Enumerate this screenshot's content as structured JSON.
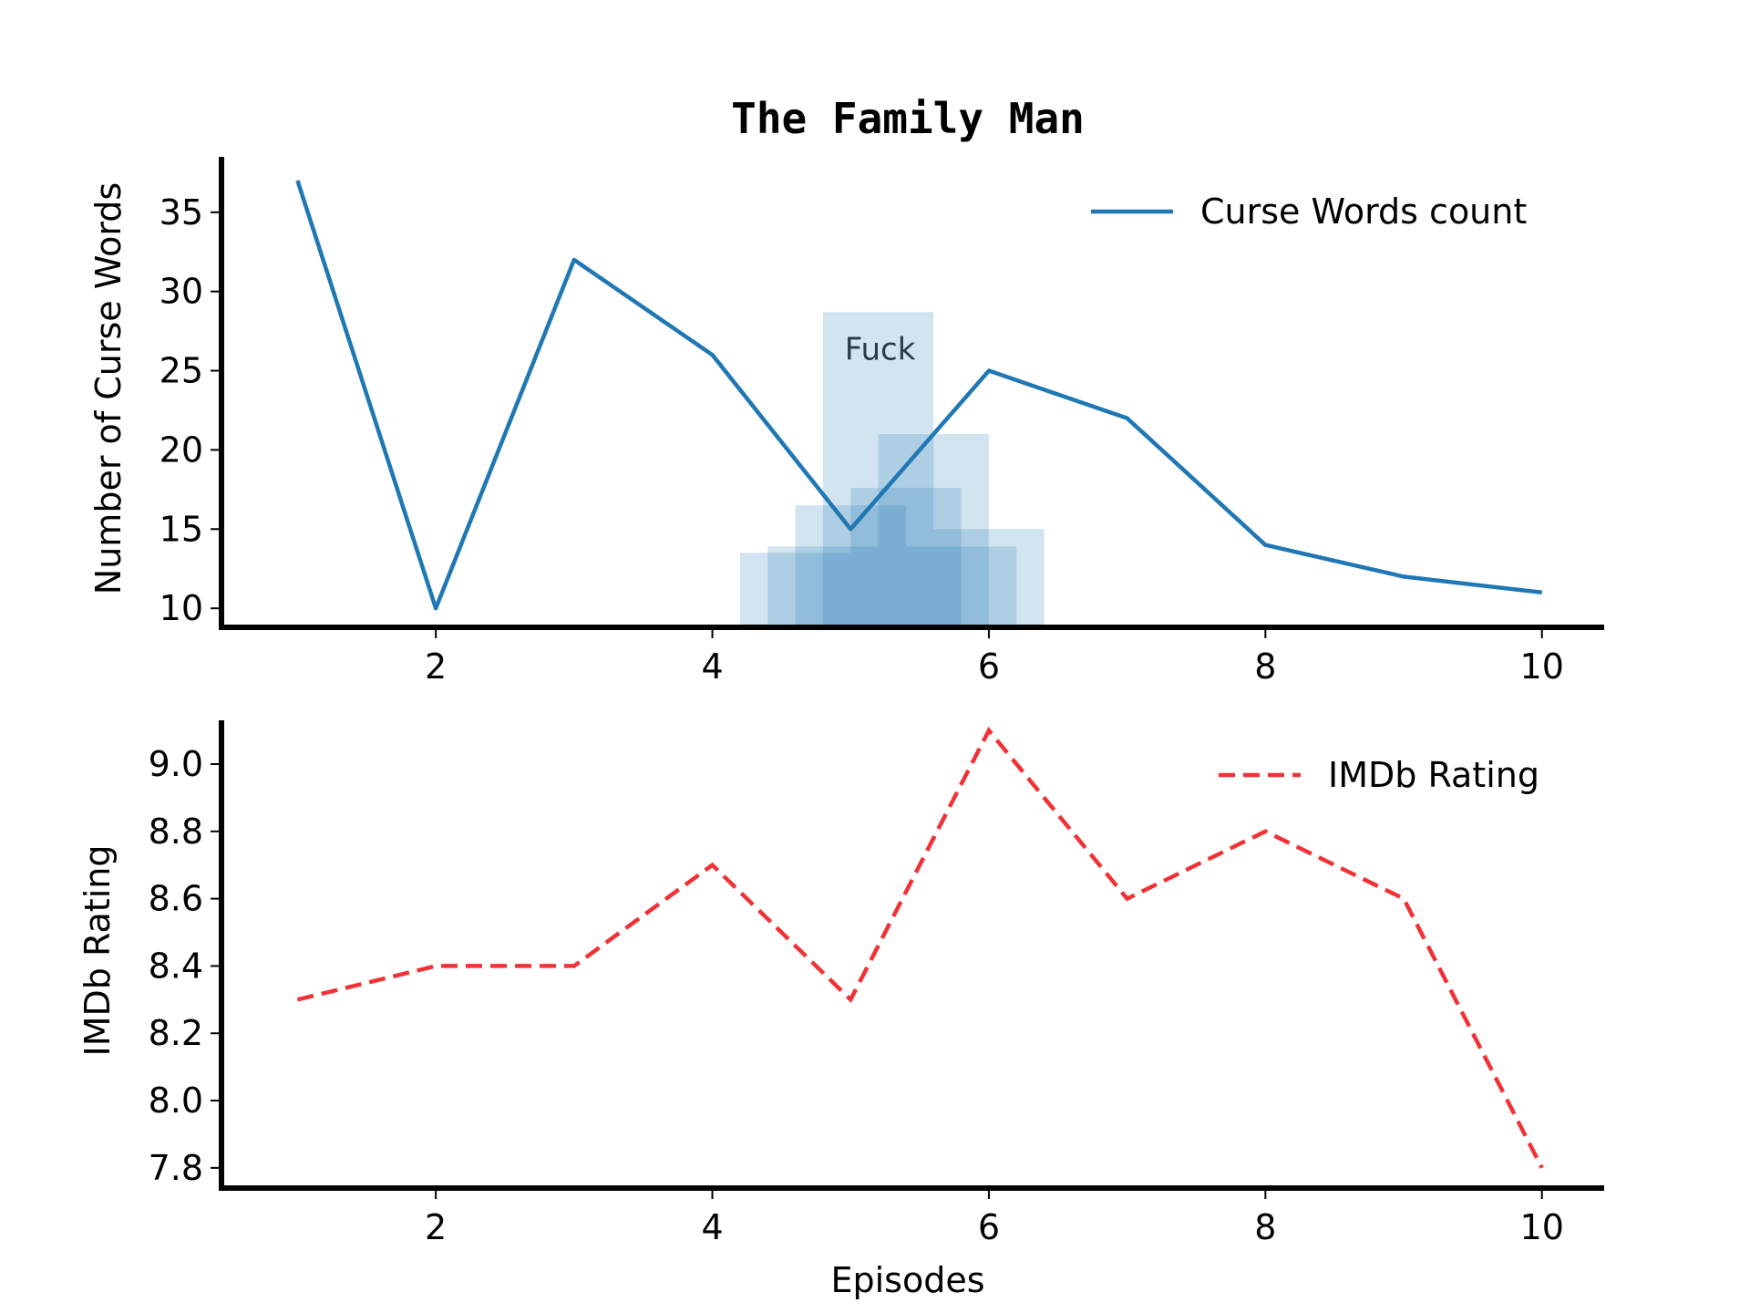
{
  "chart_data": [
    {
      "type": "line",
      "title": "The Family Man",
      "xlabel": "",
      "ylabel": "Number of Curse Words",
      "x": [
        1,
        2,
        3,
        4,
        5,
        6,
        7,
        8,
        9,
        10
      ],
      "xticks": [
        2,
        4,
        6,
        8,
        10
      ],
      "yticks": [
        10,
        15,
        20,
        25,
        30,
        35
      ],
      "xlim": [
        0.45,
        10.45
      ],
      "ylim": [
        8.8,
        38.5
      ],
      "legend": "upper right",
      "grid": false,
      "series": [
        {
          "name": "Curse Words count",
          "values": [
            37,
            10,
            32,
            26,
            15,
            25,
            22,
            14,
            12,
            11
          ],
          "color": "#1f77b4",
          "style": "solid"
        }
      ],
      "annotation": {
        "text": "Fuck",
        "color": "#1f77b4",
        "overlay_rects": [
          {
            "x0": 4.2,
            "x1": 5.0,
            "top": 13.5
          },
          {
            "x0": 4.4,
            "x1": 5.2,
            "top": 13.9
          },
          {
            "x0": 4.6,
            "x1": 5.4,
            "top": 16.5
          },
          {
            "x0": 4.8,
            "x1": 5.6,
            "top": 28.7
          },
          {
            "x0": 5.0,
            "x1": 5.8,
            "top": 17.6
          },
          {
            "x0": 5.2,
            "x1": 6.0,
            "top": 21.0
          },
          {
            "x0": 5.4,
            "x1": 6.2,
            "top": 13.9
          },
          {
            "x0": 5.6,
            "x1": 6.4,
            "top": 15.0
          }
        ]
      }
    },
    {
      "type": "line",
      "title": "",
      "xlabel": "Episodes",
      "ylabel": "IMDb Rating",
      "x": [
        1,
        2,
        3,
        4,
        5,
        6,
        7,
        8,
        9,
        10
      ],
      "xticks": [
        2,
        4,
        6,
        8,
        10
      ],
      "yticks": [
        "7.8",
        "8.0",
        "8.2",
        "8.4",
        "8.6",
        "8.8",
        "9.0"
      ],
      "xlim": [
        0.45,
        10.45
      ],
      "ylim": [
        7.74,
        9.13
      ],
      "legend": "upper right",
      "grid": false,
      "series": [
        {
          "name": "IMDb Rating",
          "values": [
            8.3,
            8.4,
            8.4,
            8.7,
            8.3,
            9.1,
            8.6,
            8.8,
            8.6,
            7.8
          ],
          "color": "#f03236",
          "style": "dashed"
        }
      ]
    }
  ]
}
